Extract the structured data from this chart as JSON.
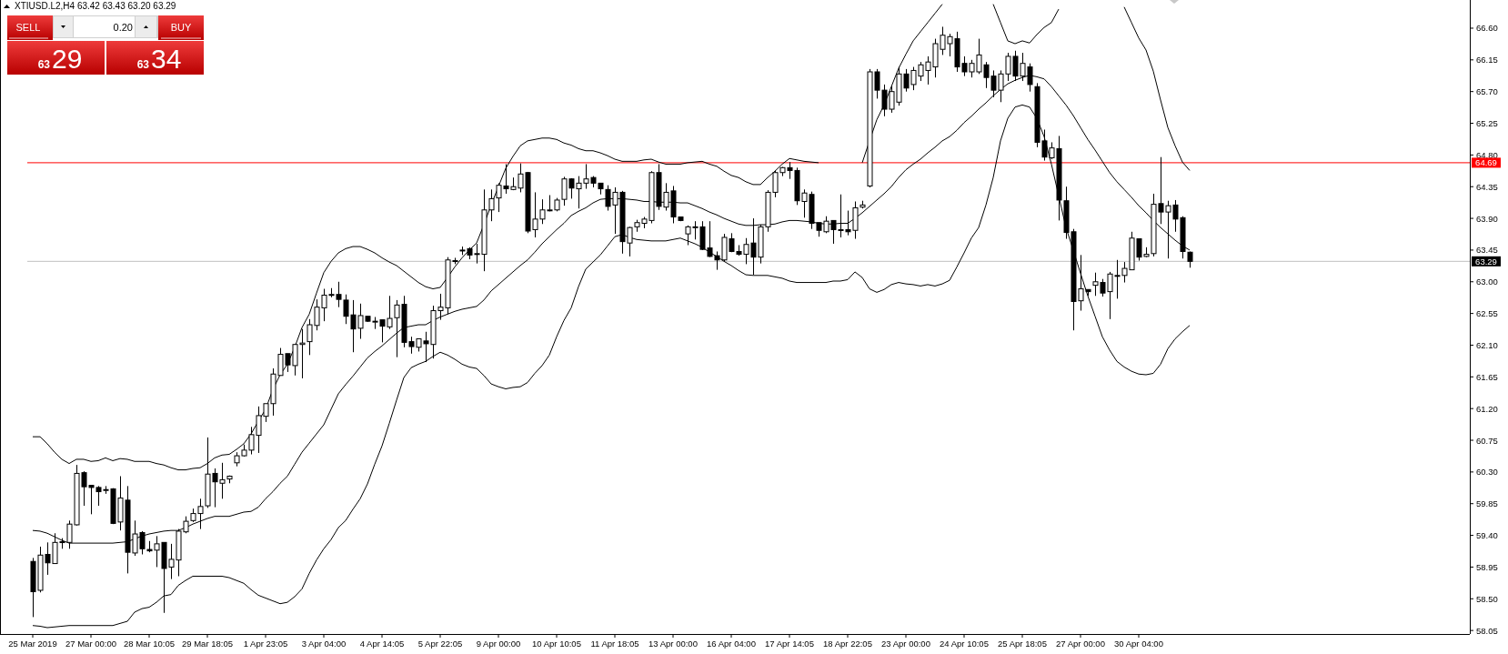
{
  "chart_data": {
    "type": "candlestick",
    "title": "XTIUSD.L2,H4  63.42 63.43 63.20 63.29",
    "categories": [
      "25 Mar 2019",
      null,
      null,
      null,
      null,
      null,
      null,
      null,
      "27 Mar 00:00",
      null,
      null,
      null,
      null,
      null,
      null,
      null,
      "28 Mar 10:05",
      null,
      null,
      null,
      null,
      null,
      null,
      null,
      "29 Mar 18:05",
      null,
      null,
      null,
      null,
      null,
      null,
      null,
      "1 Apr 23:05",
      null,
      null,
      null,
      null,
      null,
      null,
      null,
      "3 Apr 04:00",
      null,
      null,
      null,
      null,
      null,
      null,
      null,
      "4 Apr 14:05",
      null,
      null,
      null,
      null,
      null,
      null,
      null,
      "5 Apr 22:05",
      null,
      null,
      null,
      null,
      null,
      null,
      null,
      "9 Apr 00:00",
      null,
      null,
      null,
      null,
      null,
      null,
      null,
      "10 Apr 10:05",
      null,
      null,
      null,
      null,
      null,
      null,
      null,
      "11 Apr 18:05",
      null,
      null,
      null,
      null,
      null,
      null,
      null,
      "13 Apr 00:00",
      null,
      null,
      null,
      null,
      null,
      null,
      null,
      "16 Apr 04:00",
      null,
      null,
      null,
      null,
      null,
      null,
      null,
      "17 Apr 14:05",
      null,
      null,
      null,
      null,
      null,
      null,
      null,
      "18 Apr 22:05",
      null,
      null,
      null,
      null,
      null,
      null,
      null,
      "23 Apr 00:00",
      null,
      null,
      null,
      null,
      null,
      null,
      null,
      "24 Apr 10:05",
      null,
      null,
      null,
      null,
      null,
      null,
      null,
      "25 Apr 18:05",
      null,
      null,
      null,
      null,
      null,
      null,
      null,
      "27 Apr 00:00",
      null,
      null,
      null,
      null,
      null,
      null,
      null,
      "30 Apr 04:00",
      null,
      null,
      null,
      null,
      null,
      null,
      null
    ],
    "ohlc": [
      [
        59.03,
        59.08,
        58.24,
        58.6
      ],
      [
        58.62,
        59.24,
        58.59,
        59.12
      ],
      [
        59.13,
        59.3,
        58.84,
        59.01
      ],
      [
        59.0,
        59.43,
        59.0,
        59.3
      ],
      [
        59.3,
        59.36,
        59.21,
        59.31
      ],
      [
        59.3,
        59.61,
        59.21,
        59.56
      ],
      [
        59.55,
        60.4,
        59.54,
        60.28
      ],
      [
        60.29,
        60.31,
        59.82,
        60.09
      ],
      [
        60.11,
        60.11,
        59.7,
        60.08
      ],
      [
        60.08,
        60.1,
        59.82,
        60.02
      ],
      [
        60.04,
        60.1,
        59.99,
        60.05
      ],
      [
        60.06,
        60.07,
        59.56,
        59.57
      ],
      [
        59.59,
        60.24,
        59.47,
        59.93
      ],
      [
        59.9,
        60.1,
        58.86,
        59.16
      ],
      [
        59.15,
        59.61,
        59.11,
        59.42
      ],
      [
        59.44,
        59.46,
        59.13,
        59.21
      ],
      [
        59.2,
        59.32,
        59.16,
        59.18
      ],
      [
        59.19,
        59.39,
        58.95,
        59.28
      ],
      [
        59.3,
        59.3,
        58.3,
        58.93
      ],
      [
        58.95,
        59.28,
        58.78,
        59.06
      ],
      [
        59.05,
        59.49,
        58.82,
        59.46
      ],
      [
        59.45,
        59.67,
        59.43,
        59.6
      ],
      [
        59.61,
        59.78,
        59.59,
        59.71
      ],
      [
        59.71,
        59.92,
        59.49,
        59.81
      ],
      [
        59.82,
        60.79,
        59.79,
        60.27
      ],
      [
        60.28,
        60.35,
        59.8,
        60.16
      ],
      [
        60.14,
        60.43,
        59.92,
        60.19
      ],
      [
        60.2,
        60.25,
        60.14,
        60.24
      ],
      [
        60.43,
        60.58,
        60.38,
        60.53
      ],
      [
        60.53,
        60.69,
        60.52,
        60.61
      ],
      [
        60.61,
        60.94,
        60.55,
        60.83
      ],
      [
        60.82,
        61.23,
        60.57,
        61.1
      ],
      [
        61.09,
        61.27,
        61.01,
        61.27
      ],
      [
        61.27,
        61.77,
        61.1,
        61.69
      ],
      [
        61.67,
        62.06,
        61.67,
        61.97
      ],
      [
        61.98,
        61.98,
        61.72,
        61.82
      ],
      [
        61.81,
        62.12,
        61.67,
        62.11
      ],
      [
        62.11,
        62.33,
        61.63,
        62.13
      ],
      [
        62.15,
        62.47,
        61.96,
        62.39
      ],
      [
        62.38,
        62.75,
        62.31,
        62.64
      ],
      [
        62.63,
        62.9,
        62.44,
        62.81
      ],
      [
        62.81,
        62.91,
        62.78,
        62.82
      ],
      [
        62.82,
        63.0,
        62.64,
        62.75
      ],
      [
        62.74,
        62.82,
        62.4,
        62.51
      ],
      [
        62.53,
        62.74,
        62.0,
        62.33
      ],
      [
        62.34,
        62.69,
        62.19,
        62.52
      ],
      [
        62.51,
        62.51,
        62.43,
        62.44
      ],
      [
        62.43,
        62.5,
        62.33,
        62.44
      ],
      [
        62.46,
        62.46,
        62.14,
        62.37
      ],
      [
        62.36,
        62.8,
        62.33,
        62.48
      ],
      [
        62.49,
        62.74,
        61.93,
        62.67
      ],
      [
        62.68,
        62.8,
        62.07,
        62.14
      ],
      [
        62.15,
        62.22,
        61.98,
        62.08
      ],
      [
        62.07,
        62.19,
        62.01,
        62.19
      ],
      [
        62.16,
        62.29,
        61.86,
        62.12
      ],
      [
        62.11,
        62.66,
        61.91,
        62.59
      ],
      [
        62.59,
        62.83,
        62.46,
        62.64
      ],
      [
        62.63,
        63.35,
        62.54,
        63.31
      ],
      [
        63.29,
        63.34,
        63.25,
        63.3
      ],
      [
        63.44,
        63.5,
        63.38,
        63.45
      ],
      [
        63.47,
        63.49,
        63.32,
        63.38
      ],
      [
        63.39,
        63.54,
        63.26,
        63.4
      ],
      [
        63.39,
        64.31,
        63.15,
        64.02
      ],
      [
        64.02,
        64.31,
        63.86,
        64.18
      ],
      [
        64.19,
        64.4,
        63.99,
        64.37
      ],
      [
        64.36,
        64.67,
        64.25,
        64.32
      ],
      [
        64.31,
        64.48,
        64.3,
        64.35
      ],
      [
        64.33,
        64.68,
        64.27,
        64.53
      ],
      [
        64.55,
        64.56,
        63.69,
        63.72
      ],
      [
        63.74,
        64.27,
        63.63,
        63.89
      ],
      [
        63.89,
        64.17,
        63.82,
        64.02
      ],
      [
        64.01,
        64.23,
        64.0,
        64.02
      ],
      [
        64.02,
        64.19,
        64.0,
        64.16
      ],
      [
        64.17,
        64.49,
        64.08,
        64.46
      ],
      [
        64.46,
        64.47,
        64.18,
        64.33
      ],
      [
        64.32,
        64.5,
        64.04,
        64.4
      ],
      [
        64.4,
        64.67,
        64.32,
        64.46
      ],
      [
        64.48,
        64.5,
        64.34,
        64.4
      ],
      [
        64.4,
        64.4,
        64.24,
        64.32
      ],
      [
        64.31,
        64.37,
        64.01,
        64.07
      ],
      [
        64.09,
        64.34,
        63.68,
        64.27
      ],
      [
        64.27,
        64.29,
        63.4,
        63.57
      ],
      [
        63.55,
        63.78,
        63.36,
        63.77
      ],
      [
        63.78,
        63.88,
        63.71,
        63.84
      ],
      [
        63.83,
        63.92,
        63.76,
        63.89
      ],
      [
        63.87,
        64.57,
        63.83,
        64.55
      ],
      [
        64.55,
        64.67,
        64.02,
        64.07
      ],
      [
        64.06,
        64.4,
        64.01,
        64.27
      ],
      [
        64.29,
        64.36,
        63.83,
        63.92
      ],
      [
        63.92,
        63.92,
        63.86,
        63.87
      ],
      [
        63.68,
        63.8,
        63.52,
        63.78
      ],
      [
        63.77,
        63.86,
        63.6,
        63.78
      ],
      [
        63.78,
        63.86,
        63.45,
        63.46
      ],
      [
        63.48,
        63.86,
        63.35,
        63.36
      ],
      [
        63.37,
        63.43,
        63.17,
        63.31
      ],
      [
        63.31,
        63.68,
        63.29,
        63.63
      ],
      [
        63.61,
        63.69,
        63.42,
        63.43
      ],
      [
        63.43,
        63.52,
        63.37,
        63.39
      ],
      [
        63.39,
        63.62,
        63.25,
        63.53
      ],
      [
        63.55,
        63.9,
        63.1,
        63.35
      ],
      [
        63.35,
        63.81,
        63.26,
        63.78
      ],
      [
        63.78,
        64.3,
        63.71,
        64.27
      ],
      [
        64.27,
        64.58,
        64.2,
        64.55
      ],
      [
        64.55,
        64.63,
        64.5,
        64.62
      ],
      [
        64.62,
        64.7,
        64.46,
        64.58
      ],
      [
        64.58,
        64.62,
        64.09,
        64.15
      ],
      [
        64.14,
        64.31,
        63.91,
        64.26
      ],
      [
        64.24,
        64.28,
        63.75,
        63.83
      ],
      [
        63.84,
        63.84,
        63.64,
        63.73
      ],
      [
        63.71,
        63.93,
        63.69,
        63.86
      ],
      [
        63.87,
        63.87,
        63.54,
        63.74
      ],
      [
        63.73,
        64.24,
        63.63,
        63.74
      ],
      [
        63.74,
        64.01,
        63.66,
        63.71
      ],
      [
        63.73,
        64.14,
        63.61,
        64.05
      ],
      [
        64.06,
        64.15,
        64.04,
        64.09
      ],
      [
        64.36,
        66.02,
        64.34,
        65.98
      ],
      [
        65.98,
        66.02,
        65.6,
        65.72
      ],
      [
        65.72,
        65.8,
        65.35,
        65.45
      ],
      [
        65.45,
        65.78,
        65.4,
        65.7
      ],
      [
        65.55,
        66.05,
        65.5,
        65.95
      ],
      [
        65.95,
        66.02,
        65.7,
        65.75
      ],
      [
        65.8,
        66.05,
        65.72,
        66.0
      ],
      [
        65.92,
        66.12,
        65.85,
        66.08
      ],
      [
        66.0,
        66.2,
        65.8,
        66.12
      ],
      [
        66.05,
        66.45,
        65.9,
        66.38
      ],
      [
        66.3,
        66.62,
        66.22,
        66.5
      ],
      [
        66.38,
        66.52,
        66.2,
        66.48
      ],
      [
        66.45,
        66.55,
        65.98,
        66.05
      ],
      [
        66.1,
        66.2,
        65.92,
        65.98
      ],
      [
        65.98,
        66.15,
        65.9,
        66.1
      ],
      [
        65.98,
        66.45,
        65.95,
        66.22
      ],
      [
        66.08,
        66.12,
        65.75,
        65.9
      ],
      [
        65.92,
        66.0,
        65.62,
        65.72
      ],
      [
        65.72,
        66.0,
        65.55,
        65.95
      ],
      [
        65.95,
        66.25,
        65.85,
        66.2
      ],
      [
        66.2,
        66.28,
        65.85,
        65.92
      ],
      [
        65.92,
        66.25,
        65.85,
        66.1
      ],
      [
        66.05,
        66.1,
        65.7,
        65.8
      ],
      [
        65.77,
        65.82,
        64.91,
        64.98
      ],
      [
        65.0,
        65.16,
        64.72,
        64.77
      ],
      [
        64.76,
        64.98,
        64.74,
        64.9
      ],
      [
        64.89,
        65.07,
        63.87,
        64.16
      ],
      [
        64.15,
        64.35,
        63.61,
        63.7
      ],
      [
        63.71,
        63.75,
        62.31,
        62.72
      ],
      [
        62.73,
        63.38,
        62.59,
        62.9
      ],
      [
        62.89,
        62.89,
        62.8,
        62.86
      ],
      [
        62.95,
        63.13,
        62.8,
        63.0
      ],
      [
        62.99,
        63.04,
        62.79,
        62.84
      ],
      [
        62.86,
        63.14,
        62.47,
        63.11
      ],
      [
        63.08,
        63.31,
        62.76,
        63.09
      ],
      [
        63.09,
        63.28,
        62.99,
        63.19
      ],
      [
        63.17,
        63.71,
        63.17,
        63.62
      ],
      [
        63.61,
        63.61,
        63.3,
        63.35
      ],
      [
        63.36,
        63.49,
        63.35,
        63.39
      ],
      [
        63.4,
        64.25,
        63.36,
        64.1
      ],
      [
        64.11,
        64.77,
        63.82,
        63.99
      ],
      [
        63.99,
        64.15,
        63.33,
        64.08
      ],
      [
        64.09,
        64.16,
        63.71,
        63.89
      ],
      [
        63.91,
        63.93,
        63.33,
        63.43
      ],
      [
        63.42,
        63.43,
        63.2,
        63.29
      ]
    ],
    "series": [
      {
        "type": "line",
        "color": "#000000",
        "values": [
          60.8,
          60.8,
          60.7,
          60.58,
          60.48,
          60.42,
          60.48,
          60.48,
          60.45,
          60.46,
          60.5,
          60.46,
          60.49,
          60.48,
          60.45,
          60.45,
          60.45,
          60.42,
          60.4,
          60.36,
          60.33,
          60.33,
          60.35,
          60.36,
          60.42,
          60.5,
          60.54,
          60.55,
          60.62,
          60.7,
          60.84,
          61.02,
          61.19,
          61.47,
          61.68,
          61.83,
          62.07,
          62.35,
          62.54,
          62.84,
          63.13,
          63.29,
          63.41,
          63.47,
          63.5,
          63.5,
          63.46,
          63.41,
          63.34,
          63.28,
          63.23,
          63.15,
          63.07,
          62.99,
          62.93,
          62.9,
          62.92,
          63.06,
          63.21,
          63.34,
          63.45,
          63.55,
          63.81,
          64.09,
          64.35,
          64.61,
          64.78,
          64.93,
          65.0,
          65.02,
          65.04,
          65.04,
          65.02,
          64.97,
          64.94,
          64.89,
          64.86,
          64.86,
          64.83,
          64.79,
          64.74,
          64.71,
          64.71,
          64.71,
          64.73,
          64.74,
          64.7,
          64.67,
          64.67,
          64.67,
          64.69,
          64.7,
          64.71,
          64.67,
          64.64,
          64.57,
          64.51,
          64.48,
          64.42,
          64.38,
          64.38,
          64.48,
          64.57,
          64.67,
          64.75,
          64.73,
          64.71,
          64.7,
          64.69,
          null,
          null,
          null,
          null,
          null,
          64.69,
          65.0,
          65.3,
          65.51,
          65.77,
          66.03,
          66.23,
          66.42,
          66.55,
          66.68,
          66.81,
          66.94,
          null,
          null,
          null,
          null,
          null,
          null,
          66.94,
          66.68,
          66.42,
          66.38,
          66.42,
          66.39,
          66.51,
          66.61,
          66.68,
          66.87,
          null,
          null,
          null,
          null,
          null,
          null,
          null,
          null,
          66.9,
          66.68,
          66.46,
          66.29,
          65.99,
          65.58,
          65.19,
          64.93,
          64.7,
          64.58
        ]
      },
      {
        "type": "line",
        "color": "#000000",
        "values": [
          59.47,
          59.46,
          59.43,
          59.38,
          59.33,
          59.29,
          59.29,
          59.29,
          59.29,
          59.29,
          59.29,
          59.29,
          59.3,
          59.31,
          59.35,
          59.39,
          59.42,
          59.44,
          59.46,
          59.47,
          59.47,
          59.51,
          59.56,
          59.6,
          59.64,
          59.67,
          59.67,
          59.67,
          59.7,
          59.73,
          59.74,
          59.8,
          59.92,
          60.02,
          60.14,
          60.24,
          60.41,
          60.58,
          60.71,
          60.84,
          60.97,
          61.19,
          61.41,
          61.54,
          61.66,
          61.79,
          61.92,
          62.01,
          62.09,
          62.18,
          62.27,
          62.35,
          62.37,
          62.39,
          62.39,
          62.45,
          62.5,
          62.54,
          62.58,
          62.61,
          62.63,
          62.65,
          62.74,
          62.87,
          62.96,
          63.05,
          63.14,
          63.23,
          63.31,
          63.42,
          63.54,
          63.64,
          63.74,
          63.83,
          63.94,
          64.0,
          64.05,
          64.12,
          64.17,
          64.18,
          64.18,
          64.18,
          64.17,
          64.16,
          64.14,
          64.14,
          64.13,
          64.13,
          64.13,
          64.12,
          64.12,
          64.08,
          64.04,
          63.99,
          63.95,
          63.9,
          63.86,
          63.82,
          63.8,
          63.8,
          63.81,
          63.81,
          63.82,
          63.85,
          63.87,
          63.87,
          63.86,
          63.85,
          63.83,
          63.82,
          63.82,
          63.83,
          63.83,
          63.9,
          63.98,
          64.07,
          64.16,
          64.25,
          64.35,
          64.48,
          64.59,
          64.67,
          64.74,
          64.83,
          64.91,
          65.0,
          65.06,
          65.15,
          65.26,
          65.35,
          65.45,
          65.54,
          65.64,
          65.73,
          65.81,
          65.86,
          65.9,
          65.93,
          65.91,
          65.88,
          65.77,
          65.64,
          65.51,
          65.36,
          65.19,
          65.02,
          64.87,
          64.71,
          64.55,
          64.42,
          64.31,
          64.2,
          64.08,
          63.98,
          63.87,
          63.77,
          63.68,
          63.59,
          63.51,
          63.45
        ]
      },
      {
        "type": "line",
        "color": "#000000",
        "values": [
          58.12,
          58.11,
          58.09,
          58.1,
          58.11,
          58.12,
          58.12,
          58.12,
          58.12,
          58.12,
          58.12,
          58.12,
          58.15,
          58.18,
          58.31,
          58.36,
          58.38,
          58.45,
          58.54,
          58.56,
          58.69,
          58.76,
          58.82,
          58.82,
          58.82,
          58.82,
          58.82,
          58.8,
          58.76,
          58.72,
          58.63,
          58.55,
          58.51,
          58.47,
          58.43,
          58.45,
          58.53,
          58.64,
          58.86,
          59.05,
          59.21,
          59.34,
          59.51,
          59.61,
          59.77,
          59.92,
          60.13,
          60.41,
          60.67,
          60.99,
          61.32,
          61.64,
          61.78,
          61.83,
          61.87,
          61.94,
          62.0,
          61.96,
          61.9,
          61.83,
          61.79,
          61.77,
          61.67,
          61.55,
          61.51,
          61.48,
          61.5,
          61.51,
          61.57,
          61.7,
          61.81,
          61.96,
          62.22,
          62.45,
          62.63,
          62.93,
          63.18,
          63.28,
          63.38,
          63.51,
          63.64,
          63.67,
          63.63,
          63.6,
          63.59,
          63.58,
          63.58,
          63.58,
          63.6,
          63.62,
          63.58,
          63.54,
          63.49,
          63.42,
          63.36,
          63.29,
          63.23,
          63.16,
          63.1,
          63.09,
          63.09,
          63.09,
          63.07,
          63.05,
          63.01,
          62.99,
          62.99,
          62.99,
          62.99,
          62.99,
          63.01,
          63.01,
          63.03,
          63.14,
          63.06,
          62.9,
          62.85,
          62.89,
          62.96,
          62.99,
          62.97,
          62.96,
          62.94,
          62.96,
          62.94,
          62.97,
          63.02,
          63.21,
          63.41,
          63.62,
          63.77,
          64.09,
          64.48,
          65.0,
          65.32,
          65.48,
          65.51,
          65.48,
          65.32,
          65.06,
          64.67,
          64.22,
          63.77,
          63.45,
          63.12,
          62.8,
          62.51,
          62.22,
          62.03,
          61.87,
          61.79,
          61.73,
          61.69,
          61.68,
          61.7,
          61.83,
          62.05,
          62.19,
          62.29,
          62.38
        ]
      }
    ],
    "ylim": [
      58.0,
      67.0
    ],
    "yticks": [
      {
        "value": 58.05,
        "label": "58.05"
      },
      {
        "value": 58.5,
        "label": "58.50"
      },
      {
        "value": 58.95,
        "label": "58.95"
      },
      {
        "value": 59.4,
        "label": "59.40"
      },
      {
        "value": 59.85,
        "label": "59.85"
      },
      {
        "value": 60.3,
        "label": "60.30"
      },
      {
        "value": 60.75,
        "label": "60.75"
      },
      {
        "value": 61.2,
        "label": "61.20"
      },
      {
        "value": 61.65,
        "label": "61.65"
      },
      {
        "value": 62.1,
        "label": "62.10"
      },
      {
        "value": 62.55,
        "label": "62.55"
      },
      {
        "value": 63.0,
        "label": "63.00"
      },
      {
        "value": 63.45,
        "label": "63.45"
      },
      {
        "value": 63.9,
        "label": "63.90"
      },
      {
        "value": 64.35,
        "label": "64.35"
      },
      {
        "value": 64.8,
        "label": "64.80"
      },
      {
        "value": 65.25,
        "label": "65.25"
      },
      {
        "value": 65.7,
        "label": "65.70"
      },
      {
        "value": 66.15,
        "label": "66.15"
      },
      {
        "value": 66.6,
        "label": "66.60"
      }
    ],
    "ref_lines": [
      {
        "axis": "y",
        "value": 64.69,
        "label": "64.69",
        "color": "#ff0000"
      },
      {
        "axis": "y",
        "value": 63.29,
        "label": "63.29",
        "color": "#c0c0c0"
      }
    ],
    "annotations": [
      "SELL",
      "0.20",
      "BUY",
      "63",
      "29",
      "63",
      "34"
    ]
  }
}
